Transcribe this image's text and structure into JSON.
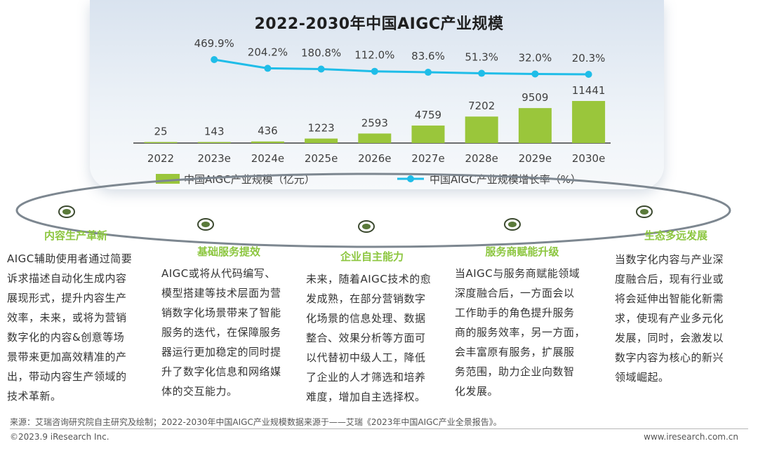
{
  "chart_data": {
    "type": "bar",
    "title": "2022-2030年中国AIGC产业规模",
    "categories": [
      "2022",
      "2023e",
      "2024e",
      "2025e",
      "2026e",
      "2027e",
      "2028e",
      "2029e",
      "2030e"
    ],
    "series": [
      {
        "name": "中国AIGC产业规模（亿元）",
        "kind": "bar",
        "color": "#9ac63b",
        "values": [
          25,
          143,
          436,
          1223,
          2593,
          4759,
          7202,
          9509,
          11441
        ],
        "labels": [
          "25",
          "143",
          "436",
          "1223",
          "2593",
          "4759",
          "7202",
          "9509",
          "11441"
        ]
      },
      {
        "name": "中国AIGC产业规模增长率（%）",
        "kind": "line",
        "color": "#1fbde8",
        "values": [
          null,
          469.9,
          204.2,
          180.8,
          112.0,
          83.6,
          51.3,
          32.0,
          20.3
        ],
        "labels": [
          "",
          "469.9%",
          "204.2%",
          "180.8%",
          "112.0%",
          "83.6%",
          "51.3%",
          "32.0%",
          "20.3%"
        ]
      }
    ],
    "legend": "bottom"
  },
  "columns": [
    {
      "title": "内容生产革新",
      "lines": [
        "AIGC辅助使用者通过简要",
        "诉求描述自动化生成内容",
        "展现形式，提升内容生产",
        "效率，未来，或将为营销",
        "数字化的内容&创意等场",
        "景带来更加高效精准的产",
        "出，带动内容生产领域的",
        "技术革新。"
      ]
    },
    {
      "title": "基础服务提效",
      "lines": [
        "AIGC或将从代码编写、",
        "模型搭建等技术层面为营",
        "销数字化场景带来了智能",
        "服务的迭代，在保障服务",
        "器运行更加稳定的同时提",
        "升了数字化信息和网络媒",
        "体的交互能力。"
      ]
    },
    {
      "title": "企业自主能力",
      "lines": [
        "未来，随着AIGC技术的愈",
        "发成熟，在部分营销数字",
        "化场景的信息处理、数据",
        "整合、效果分析等方面可",
        "以代替初中级人工，降低",
        "了企业的人才筛选和培养",
        "难度，增加自主选择权。"
      ]
    },
    {
      "title": "服务商赋能升级",
      "lines": [
        "当AIGC与服务商赋能领域",
        "深度融合后，一方面会以",
        "工作助手的角色提升服务",
        "商的服务效率，另一方面，",
        "会丰富原有服务，扩展服",
        "务范围，助力企业向数智",
        "化发展。"
      ]
    },
    {
      "title": "生态多远发展",
      "lines": [
        "当数字化内容与产业深",
        "度融合后，现有行业或",
        "将会延伸出智能化新需",
        "求，使现有产业多元化",
        "发展，同时，会激发以",
        "数字内容为核心的新兴",
        "领域崛起。"
      ]
    }
  ],
  "footer": {
    "source": "来源：艾瑞咨询研究院自主研究及绘制；2022-2030年中国AIGC产业规模数据来源于——艾瑞《2023年中国AIGC产业全景报告》。",
    "copyright": "©2023.9 iResearch Inc.",
    "site": "www.iresearch.com.cn"
  },
  "colors": {
    "accent": "#8cc63f",
    "bar": "#9ac63b",
    "line": "#1fbde8",
    "node": "#5a7a3a"
  }
}
